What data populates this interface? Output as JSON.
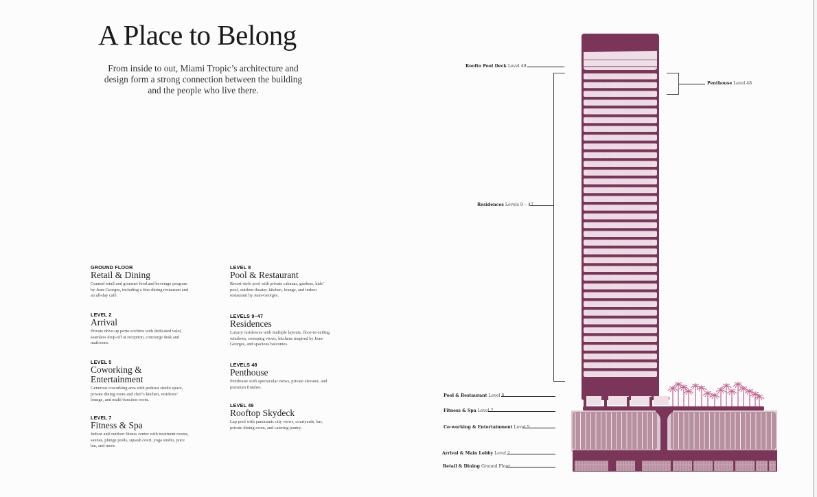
{
  "header": {
    "title": "A Place to Belong",
    "subtitle": "From inside to out, Miami Tropic’s architecture and design form a strong connection between the building and the people who live there."
  },
  "amenities": [
    {
      "kicker": "GROUND FLOOR",
      "heading": "Retail & Dining",
      "description": "Curated retail and gourmet food and beverage program by Jean-Georges, including a fine-dining restaurant and an all-day café."
    },
    {
      "kicker": "LEVEL 2",
      "heading": "Arrival",
      "description": "Private drive-up porte-cochère with dedicated valet, seamless drop-off at reception, concierge desk and mailroom."
    },
    {
      "kicker": "LEVEL 5",
      "heading": "Coworking & Entertainment",
      "description": "Generous coworking area with podcast studio space, private dining room and chef’s kitchen, residents’ lounge, and multi-function room."
    },
    {
      "kicker": "LEVEL 7",
      "heading": "Fitness & Spa",
      "description": "Indoor and outdoor fitness center with treatment rooms, saunas, plunge pools, squash court, yoga studio, juice bar, and more."
    },
    {
      "kicker": "LEVEL 8",
      "heading": "Pool & Restaurant",
      "description": "Resort-style pool with private cabanas, gardens, kids’ pool, outdoor theater, kitchen, lounge, and indoor restaurant by Jean-Georges."
    },
    {
      "kicker": "LEVELS 9–47",
      "heading": "Residences",
      "description": "Luxury residences with multiple layouts, floor-to-ceiling windows, sweeping views, kitchens inspired by Jean-Georges, and spacious balconies."
    },
    {
      "kicker": "LEVELS 48",
      "heading": "Penthouse",
      "description": "Penthouse with spectacular views, private elevator, and premium finishes."
    },
    {
      "kicker": "LEVEL 49",
      "heading": "Rooftop Skydeck",
      "description": "Lap pool with panoramic city views, courtyards, bar, private dining room, and catering pantry."
    }
  ],
  "diagram": {
    "colors": {
      "structure": "#7a3558",
      "glass": "#eedfe7",
      "podium_glass": "#b7909f",
      "palm": "#c25d8e"
    },
    "callouts": {
      "rooftop": {
        "name": "Roofto Pool Deck",
        "level": "Level 49"
      },
      "penthouse": {
        "name": "Penthouse",
        "level": "Level 48"
      },
      "residences": {
        "name": "Residences",
        "level": "Levels 9 – 47"
      },
      "pool": {
        "name": "Pool & Restaurant",
        "level": "Level 8"
      },
      "fitness": {
        "name": "Fitness & Spa",
        "level": "Level 7"
      },
      "coworking": {
        "name": "Co-working & Entertainment",
        "level": "Level 5"
      },
      "arrival": {
        "name": "Arrival & Main Lobby",
        "level": "Level 2"
      },
      "retail": {
        "name": "Retail & Dining",
        "level": "Ground Floor"
      }
    }
  }
}
